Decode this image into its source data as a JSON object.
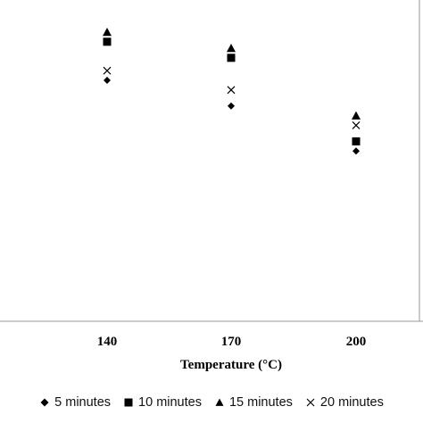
{
  "chart_data": {
    "type": "scatter",
    "title": "",
    "xlabel": "Temperature (°C)",
    "ylabel": "",
    "categories": [
      "140",
      "170",
      "200"
    ],
    "ylim": [
      0,
      100
    ],
    "grid": false,
    "legend_position": "bottom",
    "series": [
      {
        "name": "5 minutes",
        "marker": "diamond",
        "values": [
          75,
          67,
          53
        ]
      },
      {
        "name": "10 minutes",
        "marker": "square",
        "values": [
          87,
          82,
          56
        ]
      },
      {
        "name": "15 minutes",
        "marker": "triangle",
        "values": [
          90,
          85,
          64
        ]
      },
      {
        "name": "20 minutes",
        "marker": "x",
        "values": [
          78,
          72,
          61
        ]
      }
    ],
    "marker_color": "#000000",
    "axis_color": "#888888"
  }
}
